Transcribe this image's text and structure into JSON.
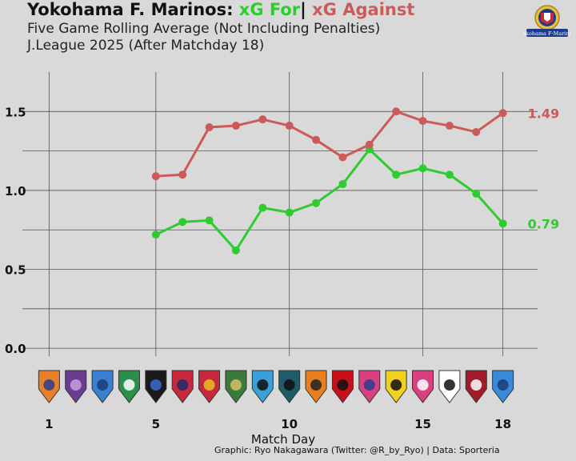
{
  "header": {
    "title_prefix": "Yokohama F. Marinos: ",
    "title_for": "xG For",
    "title_sep": "| ",
    "title_against": "xG Against",
    "subtitle_line1": "Five Game Rolling Average (Not Including Penalties)",
    "subtitle_line2": "J.League 2025 (After Matchday 18)",
    "crest_text": "Yokohama F·Marinos"
  },
  "colors": {
    "background": "#d9d9d9",
    "xg_for": "#2ecc2e",
    "xg_against": "#cc5a5a",
    "grid": "#555555"
  },
  "chart_data": {
    "type": "line",
    "x": [
      5,
      6,
      7,
      8,
      9,
      10,
      11,
      12,
      13,
      14,
      15,
      16,
      17,
      18
    ],
    "series": [
      {
        "name": "xG For",
        "color": "#2ecc2e",
        "values": [
          0.72,
          0.8,
          0.81,
          0.62,
          0.89,
          0.86,
          0.92,
          1.04,
          1.26,
          1.1,
          1.14,
          1.1,
          0.98,
          0.79
        ],
        "end_label": "0.79"
      },
      {
        "name": "xG Against",
        "color": "#cc5a5a",
        "values": [
          1.09,
          1.1,
          1.4,
          1.41,
          1.45,
          1.41,
          1.32,
          1.21,
          1.29,
          1.5,
          1.44,
          1.41,
          1.37,
          1.49
        ],
        "end_label": "1.49"
      }
    ],
    "xlabel": "Match Day",
    "xticks": [
      1,
      5,
      10,
      15,
      18
    ],
    "xlim": [
      0,
      19.3
    ],
    "yticks": [
      "0.0",
      "0.5",
      "1.0",
      "1.5"
    ],
    "ylim": [
      -0.05,
      1.75
    ],
    "grid": true,
    "opponent_logos": [
      {
        "matchday": 1,
        "color": "#e8802a",
        "accent": "#2a3c8c"
      },
      {
        "matchday": 2,
        "color": "#6a3d8f",
        "accent": "#c9a0e0"
      },
      {
        "matchday": 3,
        "color": "#3b7fd0",
        "accent": "#1b3c7a"
      },
      {
        "matchday": 4,
        "color": "#2b8f4a",
        "accent": "#ffffff"
      },
      {
        "matchday": 5,
        "color": "#1a1a1a",
        "accent": "#3b6fd0"
      },
      {
        "matchday": 6,
        "color": "#c8283c",
        "accent": "#1c2a6a"
      },
      {
        "matchday": 7,
        "color": "#c8283c",
        "accent": "#e8c020"
      },
      {
        "matchday": 8,
        "color": "#3a7a3a",
        "accent": "#d6c068"
      },
      {
        "matchday": 9,
        "color": "#3aa0d8",
        "accent": "#111111"
      },
      {
        "matchday": 10,
        "color": "#1f5c6a",
        "accent": "#111111"
      },
      {
        "matchday": 11,
        "color": "#e88020",
        "accent": "#222222"
      },
      {
        "matchday": 12,
        "color": "#c8101c",
        "accent": "#111111"
      },
      {
        "matchday": 13,
        "color": "#d94080",
        "accent": "#2a3c8c"
      },
      {
        "matchday": 14,
        "color": "#f0d020",
        "accent": "#111111"
      },
      {
        "matchday": 15,
        "color": "#d94080",
        "accent": "#ffffff"
      },
      {
        "matchday": 16,
        "color": "#ffffff",
        "accent": "#111111"
      },
      {
        "matchday": 17,
        "color": "#a01c28",
        "accent": "#ffffff"
      },
      {
        "matchday": 18,
        "color": "#3a8ad8",
        "accent": "#1b3c7a"
      }
    ]
  },
  "footer": {
    "credit": "Graphic: Ryo Nakagawara (Twitter: @R_by_Ryo) | Data: Sporteria"
  }
}
